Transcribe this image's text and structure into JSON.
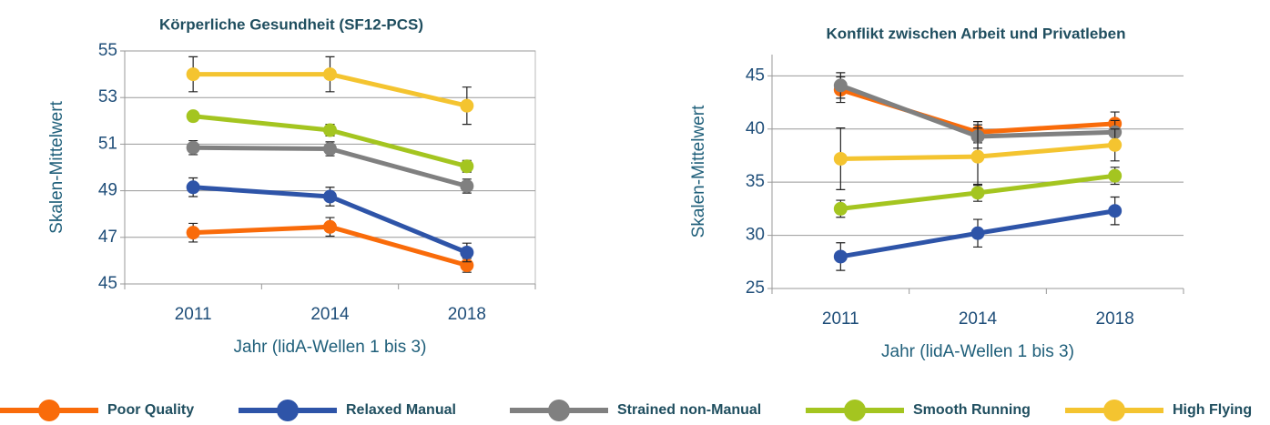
{
  "legend": [
    {
      "name": "Poor Quality",
      "color": "#f96b0a"
    },
    {
      "name": "Relaxed Manual",
      "color": "#2e54a8"
    },
    {
      "name": "Strained non-Manual",
      "color": "#808080"
    },
    {
      "name": "Smooth Running",
      "color": "#a4c520"
    },
    {
      "name": "High Flying",
      "color": "#f4c430"
    }
  ],
  "chart_data": [
    {
      "type": "line",
      "title": "Körperliche Gesundheit (SF12-PCS)",
      "y_label": "Skalen-Mittelwert",
      "x_label": "Jahr (lidA-Wellen 1 bis 3)",
      "categories": [
        "2011",
        "2014",
        "2018"
      ],
      "ylim": [
        45,
        55
      ],
      "yticks": [
        45,
        47,
        49,
        51,
        53,
        55
      ],
      "grid": true,
      "series": [
        {
          "values": [
            47.2,
            47.45,
            45.8
          ],
          "errors": [
            0.4,
            0.4,
            0.3
          ]
        },
        {
          "values": [
            49.15,
            48.75,
            46.35
          ],
          "errors": [
            0.4,
            0.4,
            0.4
          ]
        },
        {
          "values": [
            50.85,
            50.8,
            49.2
          ],
          "errors": [
            0.3,
            0.3,
            0.3
          ]
        },
        {
          "values": [
            52.2,
            51.6,
            50.05
          ],
          "errors": [
            0.2,
            0.25,
            0.25
          ]
        },
        {
          "values": [
            54.0,
            54.0,
            52.65
          ],
          "errors": [
            0.75,
            0.75,
            0.8
          ]
        }
      ]
    },
    {
      "type": "line",
      "title": "Konflikt zwischen Arbeit und Privatleben",
      "y_label": "Skalen-Mittelwert",
      "x_label": "Jahr (lidA-Wellen 1 bis 3)",
      "categories": [
        "2011",
        "2014",
        "2018"
      ],
      "ylim": [
        25,
        47
      ],
      "yticks": [
        25,
        30,
        35,
        40,
        45
      ],
      "grid": true,
      "series": [
        {
          "values": [
            43.7,
            39.7,
            40.5
          ],
          "errors": [
            1.2,
            1.0,
            1.1
          ]
        },
        {
          "values": [
            28.0,
            30.2,
            32.3
          ],
          "errors": [
            1.3,
            1.3,
            1.3
          ]
        },
        {
          "values": [
            44.1,
            39.3,
            39.7
          ],
          "errors": [
            1.2,
            1.1,
            1.1
          ]
        },
        {
          "values": [
            32.5,
            34.0,
            35.6
          ],
          "errors": [
            0.8,
            0.8,
            0.8
          ]
        },
        {
          "values": [
            37.2,
            37.4,
            38.5
          ],
          "errors": [
            2.9,
            2.7,
            1.5
          ]
        }
      ]
    }
  ]
}
